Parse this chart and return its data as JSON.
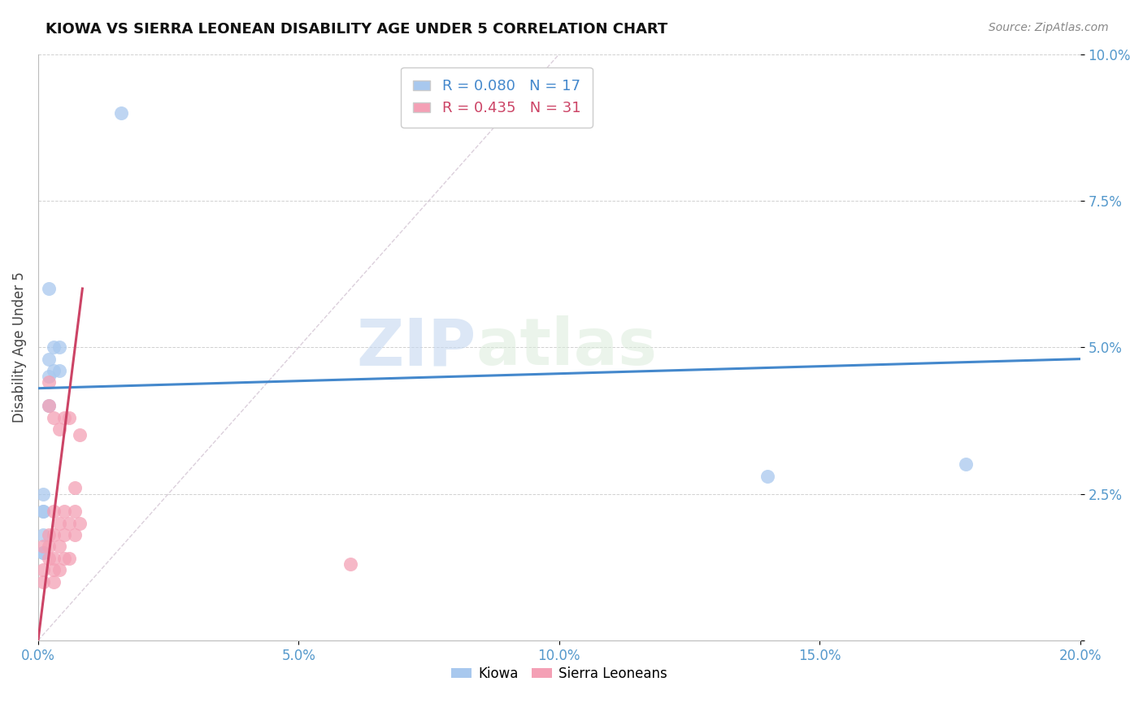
{
  "title": "KIOWA VS SIERRA LEONEAN DISABILITY AGE UNDER 5 CORRELATION CHART",
  "source": "Source: ZipAtlas.com",
  "ylabel_label": "Disability Age Under 5",
  "xlim": [
    0.0,
    0.2
  ],
  "ylim": [
    0.0,
    0.1
  ],
  "xticks": [
    0.0,
    0.05,
    0.1,
    0.15,
    0.2
  ],
  "xtick_labels": [
    "0.0%",
    "5.0%",
    "10.0%",
    "15.0%",
    "20.0%"
  ],
  "yticks": [
    0.0,
    0.025,
    0.05,
    0.075,
    0.1
  ],
  "ytick_labels": [
    "",
    "2.5%",
    "5.0%",
    "7.5%",
    "10.0%"
  ],
  "kiowa_R": 0.08,
  "kiowa_N": 17,
  "sierra_R": 0.435,
  "sierra_N": 31,
  "kiowa_color": "#A8C8EE",
  "sierra_color": "#F4A0B5",
  "trendline_kiowa_color": "#4488CC",
  "trendline_sierra_color": "#CC4466",
  "trendline_diagonal_color": "#CCBBCC",
  "background_color": "#FFFFFF",
  "watermark_zip": "ZIP",
  "watermark_atlas": "atlas",
  "kiowa_x": [
    0.001,
    0.001,
    0.001,
    0.001,
    0.001,
    0.001,
    0.002,
    0.002,
    0.002,
    0.002,
    0.003,
    0.003,
    0.004,
    0.004,
    0.016,
    0.14,
    0.178
  ],
  "kiowa_y": [
    0.015,
    0.015,
    0.018,
    0.022,
    0.022,
    0.025,
    0.04,
    0.045,
    0.048,
    0.06,
    0.05,
    0.046,
    0.05,
    0.046,
    0.09,
    0.028,
    0.03
  ],
  "sierra_x": [
    0.001,
    0.001,
    0.001,
    0.002,
    0.002,
    0.002,
    0.002,
    0.002,
    0.003,
    0.003,
    0.003,
    0.003,
    0.003,
    0.003,
    0.004,
    0.004,
    0.004,
    0.004,
    0.005,
    0.005,
    0.005,
    0.005,
    0.006,
    0.006,
    0.006,
    0.007,
    0.007,
    0.007,
    0.008,
    0.008,
    0.06
  ],
  "sierra_y": [
    0.01,
    0.012,
    0.016,
    0.014,
    0.016,
    0.018,
    0.04,
    0.044,
    0.01,
    0.012,
    0.014,
    0.018,
    0.022,
    0.038,
    0.012,
    0.016,
    0.02,
    0.036,
    0.014,
    0.018,
    0.022,
    0.038,
    0.014,
    0.02,
    0.038,
    0.018,
    0.022,
    0.026,
    0.02,
    0.035,
    0.013
  ],
  "kiowa_trendline_x": [
    0.0,
    0.2
  ],
  "kiowa_trendline_y": [
    0.043,
    0.048
  ],
  "sierra_trendline_x": [
    0.0,
    0.0085
  ],
  "sierra_trendline_y": [
    0.0,
    0.06
  ]
}
